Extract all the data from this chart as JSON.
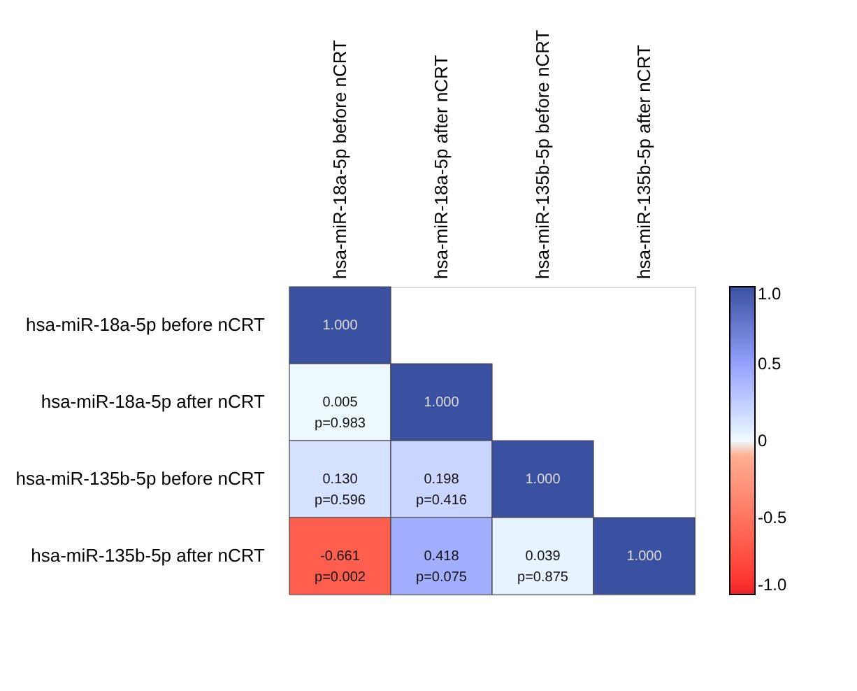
{
  "chart_data": {
    "type": "heatmap",
    "categories": [
      "hsa-miR-18a-5p before nCRT",
      "hsa-miR-18a-5p after nCRT",
      "hsa-miR-135b-5p before nCRT",
      "hsa-miR-135b-5p after nCRT"
    ],
    "y_categories": [
      "hsa-miR-18a-5p before nCRT",
      "hsa-miR-18a-5p after nCRT",
      "hsa-miR-135b-5p before nCRT",
      "hsa-miR-135b-5p after nCRT"
    ],
    "cells": [
      [
        1.0,
        null,
        null,
        null
      ],
      [
        0.005,
        1.0,
        null,
        null
      ],
      [
        0.13,
        0.198,
        1.0,
        null
      ],
      [
        -0.661,
        0.418,
        0.039,
        1.0
      ]
    ],
    "cell_labels": [
      [
        "1.000",
        null,
        null,
        null
      ],
      [
        "0.005\np=0.983",
        "1.000",
        null,
        null
      ],
      [
        "0.130\np=0.596",
        "0.198\np=0.416",
        "1.000",
        null
      ],
      [
        "-0.661\np=0.002",
        "0.418\np=0.075",
        "0.039\np=0.875",
        "1.000"
      ]
    ],
    "colors": [
      "#ec2227",
      "#ffffff",
      "#3a51a2"
    ],
    "clim": [
      -1.0,
      1.0
    ],
    "cticks": [
      {
        "value": 1.0,
        "label": "1.0"
      },
      0.5,
      0,
      -0.5,
      {
        "value": -1.0,
        "label": "-1.0"
      }
    ]
  }
}
